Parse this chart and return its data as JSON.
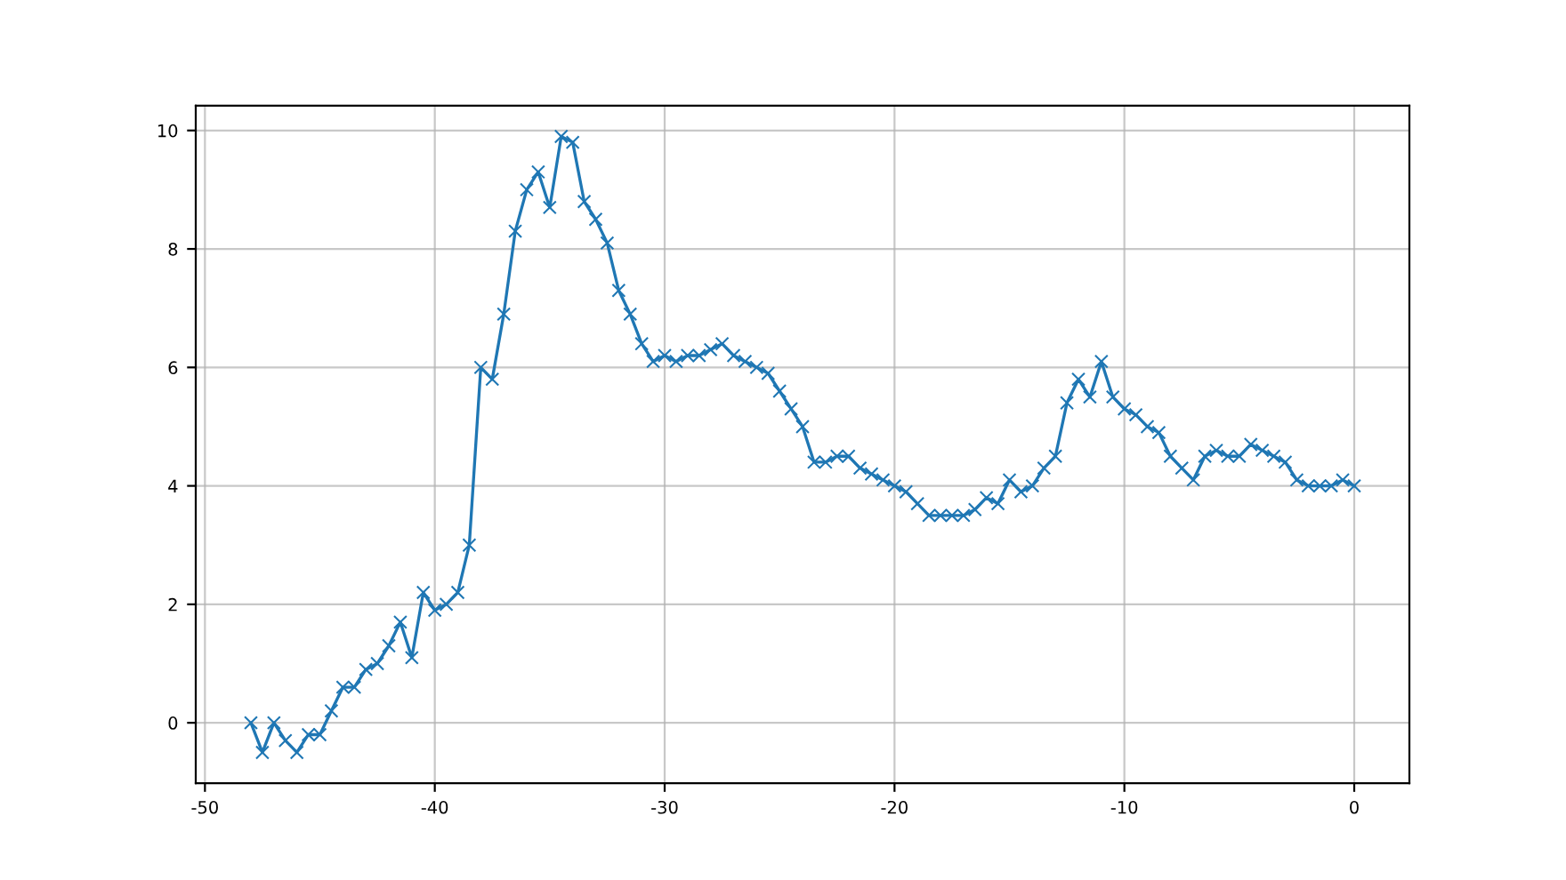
{
  "chart_data": {
    "type": "line",
    "x": [
      -48,
      -47.5,
      -47,
      -46.5,
      -46,
      -45.5,
      -45,
      -44.5,
      -44,
      -43.5,
      -43,
      -42.5,
      -42,
      -41.5,
      -41,
      -40.5,
      -40,
      -39.5,
      -39,
      -38.5,
      -38,
      -37.5,
      -37,
      -36.5,
      -36,
      -35.5,
      -35,
      -34.5,
      -34,
      -33.5,
      -33,
      -32.5,
      -32,
      -31.5,
      -31,
      -30.5,
      -30,
      -29.5,
      -29,
      -28.5,
      -28,
      -27.5,
      -27,
      -26.5,
      -26,
      -25.5,
      -25,
      -24.5,
      -24,
      -23.5,
      -23,
      -22.5,
      -22,
      -21.5,
      -21,
      -20.5,
      -20,
      -19.5,
      -19,
      -18.5,
      -18,
      -17.5,
      -17,
      -16.5,
      -16,
      -15.5,
      -15,
      -14.5,
      -14,
      -13.5,
      -13,
      -12.5,
      -12,
      -11.5,
      -11,
      -10.5,
      -10,
      -9.5,
      -9,
      -8.5,
      -8,
      -7.5,
      -7,
      -6.5,
      -6,
      -5.5,
      -5,
      -4.5,
      -4,
      -3.5,
      -3,
      -2.5,
      -2,
      -1.5,
      -1,
      -0.5,
      0
    ],
    "series": [
      {
        "color": "#1f77b4",
        "values": [
          0,
          -0.5,
          0,
          -0.3,
          -0.5,
          -0.2,
          -0.2,
          0.2,
          0.6,
          0.6,
          0.9,
          1.0,
          1.3,
          1.7,
          1.1,
          2.2,
          1.9,
          2.0,
          2.2,
          3.0,
          6.0,
          5.8,
          6.9,
          8.3,
          9.0,
          9.3,
          8.7,
          9.9,
          9.8,
          8.8,
          8.5,
          8.1,
          7.3,
          6.9,
          6.4,
          6.1,
          6.2,
          6.1,
          6.2,
          6.2,
          6.3,
          6.4,
          6.2,
          6.1,
          6.0,
          5.9,
          5.6,
          5.3,
          5.0,
          4.4,
          4.4,
          4.5,
          4.5,
          4.3,
          4.2,
          4.1,
          4.0,
          3.9,
          3.7,
          3.5,
          3.5,
          3.5,
          3.5,
          3.6,
          3.8,
          3.7,
          4.1,
          3.9,
          4.0,
          4.3,
          4.5,
          5.4,
          5.8,
          5.5,
          6.1,
          5.5,
          5.3,
          5.2,
          5.0,
          4.9,
          4.5,
          4.3,
          4.1,
          4.5,
          4.6,
          4.5,
          4.5,
          4.7,
          4.6,
          4.5,
          4.4,
          4.1,
          4.0,
          4.0,
          4.0,
          4.1,
          4.0
        ]
      }
    ],
    "xlim": [
      -50.4,
      2.4
    ],
    "xticks": [
      -50,
      -40,
      -30,
      -20,
      -10,
      0
    ],
    "ylim": [
      -1.02,
      10.42
    ],
    "yticks": [
      0,
      2,
      4,
      6,
      8,
      10
    ],
    "grid": true,
    "marker": "cross",
    "line_style": "solid"
  }
}
